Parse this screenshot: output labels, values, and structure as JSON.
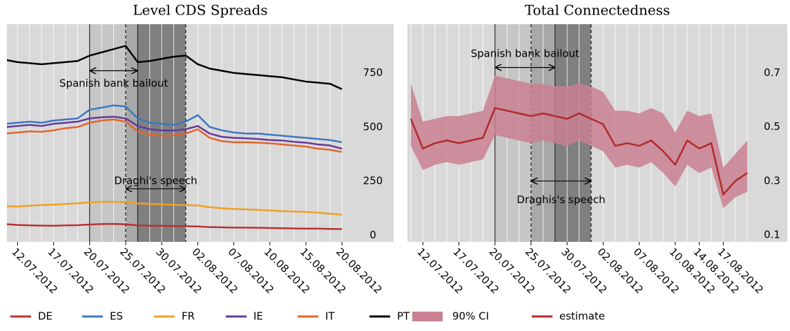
{
  "chart_data": [
    {
      "type": "line",
      "title": "Level CDS Spreads",
      "x": [
        "11.07.2012",
        "12.07.2012",
        "13.07.2012",
        "16.07.2012",
        "17.07.2012",
        "18.07.2012",
        "19.07.2012",
        "20.07.2012",
        "23.07.2012",
        "24.07.2012",
        "25.07.2012",
        "26.07.2012",
        "27.07.2012",
        "30.07.2012",
        "31.07.2012",
        "01.08.2012",
        "02.08.2012",
        "03.08.2012",
        "06.08.2012",
        "07.08.2012",
        "08.08.2012",
        "09.08.2012",
        "10.08.2012",
        "13.08.2012",
        "14.08.2012",
        "15.08.2012",
        "16.08.2012",
        "17.08.2012",
        "20.08.2012"
      ],
      "xticks": [
        "12.07.2012",
        "17.07.2012",
        "20.07.2012",
        "25.07.2012",
        "30.07.2012",
        "02.08.2012",
        "07.08.2012",
        "10.08.2012",
        "15.08.2012",
        "20.08.2012"
      ],
      "ylim": [
        -30,
        975
      ],
      "yticks": [
        0,
        250,
        500,
        750
      ],
      "grid": true,
      "series": [
        {
          "name": "DE",
          "color": "#b83232",
          "values": [
            52,
            48,
            46,
            45,
            44,
            46,
            47,
            50,
            52,
            53,
            51,
            46,
            44,
            44,
            43,
            42,
            41,
            38,
            37,
            36,
            36,
            35,
            34,
            33,
            32,
            31,
            31,
            30,
            29
          ]
        },
        {
          "name": "ES",
          "color": "#3a78c2",
          "values": [
            515,
            520,
            525,
            520,
            530,
            535,
            540,
            580,
            590,
            600,
            595,
            540,
            520,
            515,
            510,
            525,
            555,
            500,
            485,
            475,
            470,
            470,
            465,
            460,
            455,
            450,
            445,
            440,
            430
          ]
        },
        {
          "name": "FR",
          "color": "#f0a020",
          "values": [
            135,
            133,
            137,
            140,
            142,
            145,
            148,
            152,
            155,
            155,
            153,
            148,
            145,
            143,
            141,
            140,
            138,
            130,
            125,
            122,
            120,
            118,
            115,
            112,
            110,
            108,
            105,
            100,
            96
          ]
        },
        {
          "name": "IE",
          "color": "#66389a",
          "values": [
            500,
            505,
            510,
            505,
            515,
            520,
            525,
            540,
            545,
            548,
            540,
            505,
            490,
            485,
            484,
            490,
            505,
            470,
            455,
            450,
            448,
            445,
            440,
            438,
            432,
            428,
            420,
            415,
            400
          ]
        },
        {
          "name": "IT",
          "color": "#e3642a",
          "values": [
            470,
            475,
            480,
            478,
            485,
            495,
            500,
            520,
            530,
            535,
            525,
            480,
            465,
            460,
            462,
            470,
            490,
            450,
            435,
            430,
            430,
            428,
            425,
            420,
            415,
            410,
            400,
            395,
            385
          ]
        },
        {
          "name": "PT",
          "color": "#000000",
          "values": [
            810,
            800,
            795,
            790,
            795,
            800,
            805,
            830,
            845,
            860,
            875,
            800,
            805,
            815,
            825,
            830,
            790,
            770,
            760,
            750,
            745,
            740,
            735,
            730,
            720,
            710,
            705,
            700,
            675
          ]
        }
      ],
      "shades": [
        {
          "from": "20.07.2012",
          "to": "25.07.2012",
          "color": "#c6c6c6"
        },
        {
          "from": "25.07.2012",
          "to": "26.07.2012",
          "color": "#a8a8a8"
        },
        {
          "from": "26.07.2012",
          "to": "01.08.2012",
          "color": "#808080"
        }
      ],
      "vlines": [
        {
          "date": "20.07.2012",
          "dashed": false
        },
        {
          "date": "25.07.2012",
          "dashed": true
        },
        {
          "date": "26.07.2012",
          "dashed": false
        },
        {
          "date": "01.08.2012",
          "dashed": true
        }
      ],
      "annotations": [
        {
          "text": "Spanish bank bailout",
          "from": "20.07.2012",
          "to": "26.07.2012",
          "level": 760,
          "text_level": 700
        },
        {
          "text": "Draghi's speech",
          "from": "25.07.2012",
          "to": "01.08.2012",
          "level": 215,
          "text_level": 250
        }
      ]
    },
    {
      "type": "line",
      "title": "Total Connectedness",
      "x": [
        "11.07.2012",
        "12.07.2012",
        "13.07.2012",
        "16.07.2012",
        "17.07.2012",
        "18.07.2012",
        "19.07.2012",
        "20.07.2012",
        "23.07.2012",
        "24.07.2012",
        "25.07.2012",
        "26.07.2012",
        "27.07.2012",
        "30.07.2012",
        "31.07.2012",
        "01.08.2012",
        "02.08.2012",
        "03.08.2012",
        "06.08.2012",
        "07.08.2012",
        "08.08.2012",
        "09.08.2012",
        "10.08.2012",
        "13.08.2012",
        "14.08.2012",
        "16.08.2012",
        "17.08.2012",
        "20.08.2012",
        "21.08.2012"
      ],
      "xticks": [
        "12.07.2012",
        "17.07.2012",
        "20.07.2012",
        "25.07.2012",
        "30.07.2012",
        "02.08.2012",
        "07.08.2012",
        "10.08.2012",
        "14.08.2012",
        "17.08.2012"
      ],
      "ylim": [
        0.075,
        0.88
      ],
      "yticks": [
        0.1,
        0.3,
        0.5,
        0.7
      ],
      "grid": true,
      "series": [
        {
          "name": "90% CI",
          "color": "#c98090",
          "upper": [
            0.66,
            0.52,
            0.53,
            0.54,
            0.54,
            0.55,
            0.56,
            0.69,
            0.68,
            0.67,
            0.66,
            0.66,
            0.65,
            0.65,
            0.66,
            0.65,
            0.63,
            0.56,
            0.56,
            0.55,
            0.57,
            0.55,
            0.48,
            0.56,
            0.54,
            0.55,
            0.35,
            0.4,
            0.45
          ],
          "lower": [
            0.43,
            0.34,
            0.36,
            0.37,
            0.36,
            0.37,
            0.38,
            0.47,
            0.46,
            0.45,
            0.44,
            0.45,
            0.44,
            0.43,
            0.45,
            0.43,
            0.41,
            0.35,
            0.36,
            0.35,
            0.37,
            0.33,
            0.28,
            0.36,
            0.33,
            0.35,
            0.2,
            0.24,
            0.26
          ]
        },
        {
          "name": "estimate",
          "color": "#b02a2a",
          "values": [
            0.53,
            0.42,
            0.44,
            0.45,
            0.44,
            0.45,
            0.46,
            0.57,
            0.56,
            0.55,
            0.54,
            0.55,
            0.54,
            0.53,
            0.55,
            0.53,
            0.51,
            0.43,
            0.44,
            0.43,
            0.45,
            0.41,
            0.36,
            0.45,
            0.42,
            0.44,
            0.25,
            0.3,
            0.33
          ]
        }
      ],
      "shades": [
        {
          "from": "20.07.2012",
          "to": "25.07.2012",
          "color": "#c6c6c6"
        },
        {
          "from": "25.07.2012",
          "to": "27.07.2012",
          "color": "#a8a8a8"
        },
        {
          "from": "27.07.2012",
          "to": "01.08.2012",
          "color": "#808080"
        }
      ],
      "vlines": [
        {
          "date": "20.07.2012",
          "dashed": false
        },
        {
          "date": "25.07.2012",
          "dashed": true
        },
        {
          "date": "27.07.2012",
          "dashed": false
        },
        {
          "date": "01.08.2012",
          "dashed": true
        }
      ],
      "annotations": [
        {
          "text": "Spanish bank bailout",
          "from": "20.07.2012",
          "to": "27.07.2012",
          "level": 0.72,
          "text_level": 0.77
        },
        {
          "text": "Draghis's speech",
          "from": "25.07.2012",
          "to": "01.08.2012",
          "level": 0.3,
          "text_level": 0.23
        }
      ]
    }
  ]
}
